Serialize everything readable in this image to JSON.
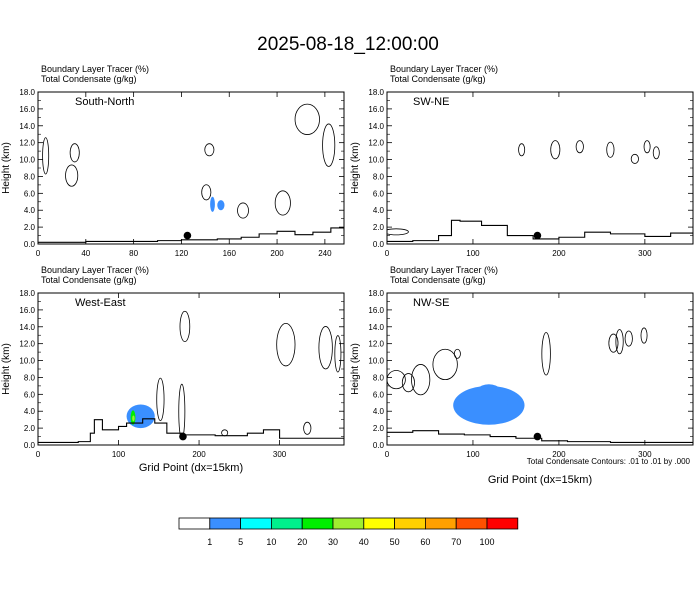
{
  "page": {
    "title": "2025-08-18_12:00:00",
    "xlabel": "Grid Point (dx=15km)",
    "contour_note": "Total Condensate Contours: .01 to .01 by .000"
  },
  "chart_data": [
    {
      "type": "contour",
      "panel_label": "South-North",
      "header": [
        "Boundary Layer Tracer   (%)",
        "Total Condensate   (g/kg)"
      ],
      "ylabel": "Height (km)",
      "xlabel": "",
      "xlim": [
        0,
        256
      ],
      "ylim": [
        0,
        18
      ],
      "xticks": [
        0,
        40,
        80,
        120,
        160,
        200,
        240
      ],
      "yticks": [
        0,
        2,
        4,
        6,
        8,
        10,
        12,
        14,
        16,
        18
      ],
      "terrain": [
        [
          0,
          0.2
        ],
        [
          10,
          0.2
        ],
        [
          40,
          0.3
        ],
        [
          80,
          0.3
        ],
        [
          100,
          0.4
        ],
        [
          120,
          0.5
        ],
        [
          150,
          0.6
        ],
        [
          170,
          0.8
        ],
        [
          185,
          1.2
        ],
        [
          200,
          1.5
        ],
        [
          215,
          1.1
        ],
        [
          230,
          1.4
        ],
        [
          245,
          1.9
        ],
        [
          256,
          1.6
        ]
      ],
      "tracer_fill": [
        {
          "level": 1,
          "x": [
            144,
            148
          ],
          "y": [
            3.8,
            5.6
          ]
        },
        {
          "level": 1,
          "x": [
            150,
            156
          ],
          "y": [
            4.0,
            5.2
          ]
        }
      ],
      "marker": {
        "x": 125,
        "y": 1.0
      }
    },
    {
      "type": "contour",
      "panel_label": "SW-NE",
      "header": [
        "Boundary Layer Tracer   (%)",
        "Total Condensate   (g/kg)"
      ],
      "ylabel": "Height (km)",
      "xlabel": "",
      "xlim": [
        0,
        356
      ],
      "ylim": [
        0,
        18
      ],
      "xticks": [
        0,
        100,
        200,
        300
      ],
      "yticks": [
        0,
        2,
        4,
        6,
        8,
        10,
        12,
        14,
        16,
        18
      ],
      "terrain": [
        [
          0,
          0.3
        ],
        [
          30,
          0.4
        ],
        [
          60,
          1.0
        ],
        [
          75,
          2.8
        ],
        [
          85,
          2.7
        ],
        [
          110,
          2.2
        ],
        [
          140,
          1.0
        ],
        [
          170,
          0.6
        ],
        [
          200,
          0.8
        ],
        [
          230,
          1.4
        ],
        [
          260,
          1.2
        ],
        [
          300,
          0.9
        ],
        [
          330,
          1.3
        ],
        [
          356,
          1.0
        ]
      ],
      "tracer_fill": [],
      "marker": {
        "x": 175,
        "y": 1.0
      }
    },
    {
      "type": "contour",
      "panel_label": "West-East",
      "header": [
        "Boundary Layer Tracer   (%)",
        "Total Condensate   (g/kg)"
      ],
      "ylabel": "Height (km)",
      "xlabel": "Grid Point (dx=15km)",
      "xlim": [
        0,
        380
      ],
      "ylim": [
        0,
        18
      ],
      "xticks": [
        0,
        100,
        200,
        300
      ],
      "yticks": [
        0,
        2,
        4,
        6,
        8,
        10,
        12,
        14,
        16,
        18
      ],
      "terrain": [
        [
          0,
          0.3
        ],
        [
          50,
          0.4
        ],
        [
          65,
          1.4
        ],
        [
          70,
          3.0
        ],
        [
          80,
          1.8
        ],
        [
          100,
          2.2
        ],
        [
          110,
          2.6
        ],
        [
          130,
          3.1
        ],
        [
          145,
          2.6
        ],
        [
          160,
          1.4
        ],
        [
          180,
          1.2
        ],
        [
          220,
          1.1
        ],
        [
          260,
          1.4
        ],
        [
          280,
          1.8
        ],
        [
          300,
          0.8
        ],
        [
          340,
          0.8
        ],
        [
          380,
          0.5
        ]
      ],
      "tracer_fill": [
        {
          "level": 1,
          "x": [
            110,
            145
          ],
          "y": [
            2.0,
            4.8
          ]
        },
        {
          "level": 20,
          "x": [
            115,
            121
          ],
          "y": [
            2.4,
            4.1
          ]
        },
        {
          "level": 30,
          "x": [
            117,
            120
          ],
          "y": [
            2.8,
            3.5
          ]
        }
      ],
      "marker": {
        "x": 180,
        "y": 1.0
      }
    },
    {
      "type": "contour",
      "panel_label": "NW-SE",
      "header": [
        "Boundary Layer Tracer   (%)",
        "Total Condensate   (g/kg)"
      ],
      "ylabel": "Height (km)",
      "xlabel": "Grid Point (dx=15km)",
      "xlim": [
        0,
        356
      ],
      "ylim": [
        0,
        18
      ],
      "xticks": [
        0,
        100,
        200,
        300
      ],
      "yticks": [
        0,
        2,
        4,
        6,
        8,
        10,
        12,
        14,
        16,
        18
      ],
      "terrain": [
        [
          0,
          1.5
        ],
        [
          30,
          1.7
        ],
        [
          60,
          1.3
        ],
        [
          90,
          1.2
        ],
        [
          120,
          1.0
        ],
        [
          150,
          0.8
        ],
        [
          180,
          0.5
        ],
        [
          210,
          0.4
        ],
        [
          260,
          0.3
        ],
        [
          300,
          0.3
        ],
        [
          356,
          0.2
        ]
      ],
      "tracer_fill": [
        {
          "level": 1,
          "x": [
            77,
            160
          ],
          "y": [
            2.4,
            7.0
          ]
        },
        {
          "level": 1,
          "x": [
            97,
            140
          ],
          "y": [
            2.6,
            7.2
          ]
        }
      ],
      "marker": {
        "x": 175,
        "y": 1.0
      }
    }
  ],
  "legend": {
    "levels": [
      "1",
      "5",
      "10",
      "20",
      "30",
      "40",
      "50",
      "60",
      "70",
      "100"
    ],
    "colors": [
      "#ffffff",
      "#3a8fff",
      "#00ffff",
      "#00f08c",
      "#00ee00",
      "#a0ee30",
      "#ffff00",
      "#ffd000",
      "#ffa000",
      "#ff5000",
      "#ff0000"
    ]
  }
}
